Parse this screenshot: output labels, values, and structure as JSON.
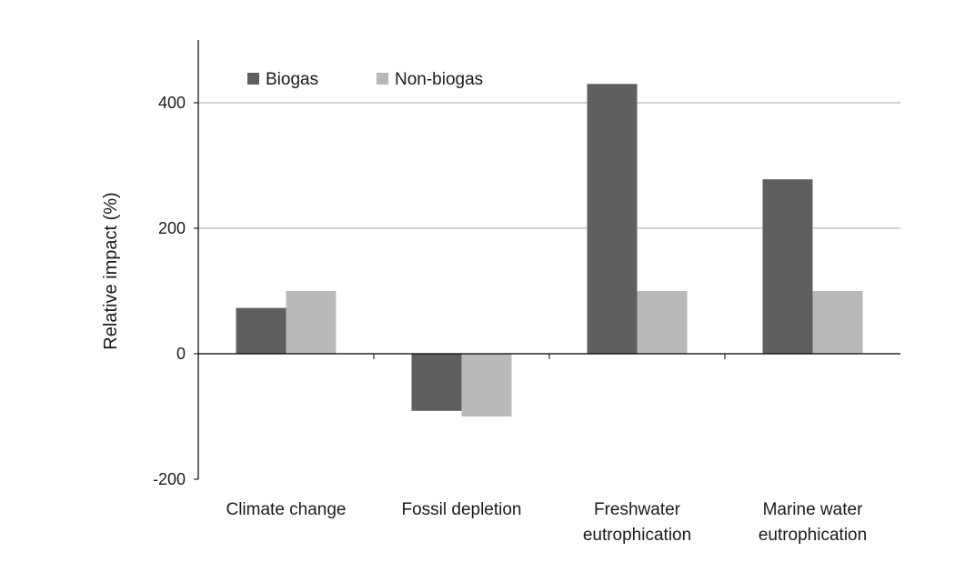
{
  "chart_data": {
    "type": "bar",
    "title": "",
    "xlabel": "",
    "ylabel": "Relative  impact (%)",
    "ylim": [
      -200,
      500
    ],
    "yticks": [
      -200,
      0,
      200,
      400
    ],
    "grid": "horizontal",
    "legend_position": "top-left",
    "categories": [
      [
        "Climate change"
      ],
      [
        "Fossil depletion"
      ],
      [
        "Freshwater",
        "eutrophication"
      ],
      [
        "Marine water",
        "eutrophication"
      ]
    ],
    "series": [
      {
        "name": "Biogas",
        "color": "#5f5f5f",
        "values": [
          73,
          -91,
          430,
          278
        ]
      },
      {
        "name": "Non-biogas",
        "color": "#b9b9b9",
        "values": [
          100,
          -100,
          100,
          100
        ]
      }
    ]
  }
}
